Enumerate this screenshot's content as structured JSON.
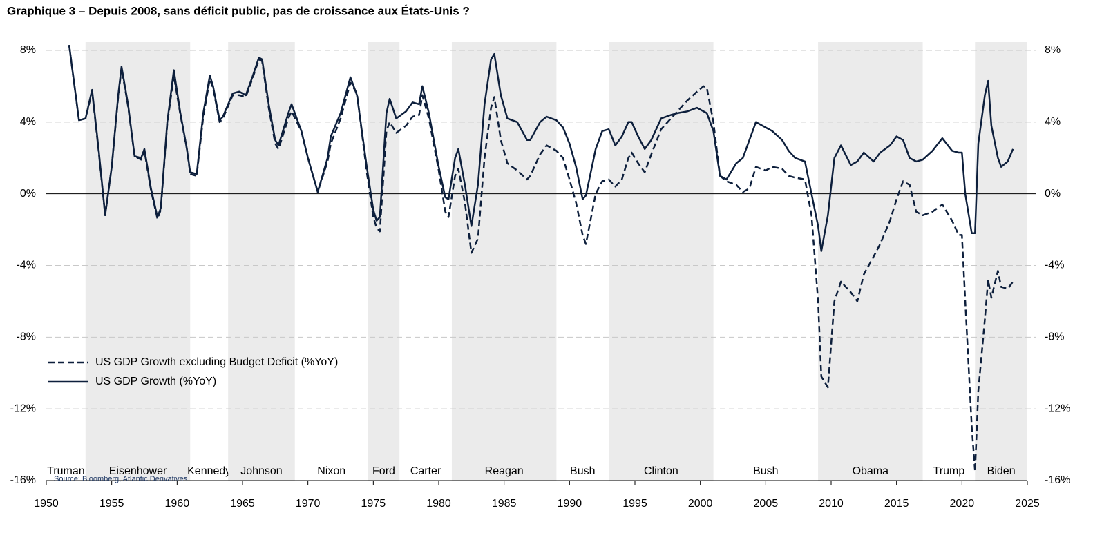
{
  "chart_data": {
    "type": "line",
    "title": "Graphique 3 – Depuis 2008, sans déficit public, pas de croissance aux États-Unis ?",
    "source": "Source: Bloomberg, Atlantic Derivatives",
    "x": [
      1951.75,
      1952.5,
      1953,
      1953.5,
      1954,
      1954.5,
      1955,
      1955.5,
      1955.75,
      1956.25,
      1956.75,
      1957.25,
      1957.5,
      1958,
      1958.5,
      1958.75,
      1959.25,
      1959.75,
      1960.25,
      1960.75,
      1961,
      1961.5,
      1962,
      1962.5,
      1962.75,
      1963.25,
      1963.5,
      1964.25,
      1964.75,
      1965.25,
      1965.75,
      1966.25,
      1966.5,
      1967,
      1967.5,
      1967.75,
      1968.5,
      1968.75,
      1969.5,
      1970,
      1970.75,
      1971.5,
      1971.75,
      1972.5,
      1973.25,
      1973.75,
      1974.5,
      1975,
      1975.25,
      1975.5,
      1976,
      1976.25,
      1976.75,
      1977.5,
      1978,
      1978.5,
      1978.75,
      1979.25,
      1980,
      1980.5,
      1980.75,
      1981.25,
      1981.5,
      1982,
      1982.5,
      1983,
      1983.5,
      1984,
      1984.25,
      1984.75,
      1985.25,
      1986,
      1986.75,
      1987,
      1987.75,
      1988.25,
      1989,
      1989.5,
      1990,
      1990.5,
      1991,
      1991.25,
      1992,
      1992.5,
      1993,
      1993.5,
      1994,
      1994.5,
      1994.75,
      1995.25,
      1995.75,
      1996.25,
      1997,
      1997.75,
      1998.25,
      1999,
      1999.75,
      2000.25,
      2000.5,
      2001,
      2001.5,
      2002,
      2002.75,
      2003.25,
      2003.75,
      2004.25,
      2005,
      2005.5,
      2006.25,
      2006.75,
      2007.25,
      2008,
      2008.5,
      2009,
      2009.25,
      2009.75,
      2010.25,
      2010.75,
      2011.5,
      2012,
      2012.5,
      2013.25,
      2013.75,
      2014.5,
      2015,
      2015.5,
      2016,
      2016.5,
      2017,
      2017.75,
      2018.5,
      2019.25,
      2019.75,
      2020,
      2020.25,
      2020.75,
      2021,
      2021.25,
      2021.75,
      2022,
      2022.25,
      2022.75,
      2023,
      2023.5,
      2023.9
    ],
    "series": [
      {
        "name": "US GDP Growth excluding Budget Deficit (%YoY)",
        "color": "#0d1f3c",
        "dash": true,
        "values": [
          8.3,
          4.1,
          4.2,
          5.7,
          2.4,
          -1.2,
          1.5,
          5.4,
          7.0,
          4.9,
          2.1,
          1.9,
          2.4,
          0.2,
          -1.4,
          -0.9,
          3.9,
          6.6,
          4.4,
          2.5,
          1.1,
          1.0,
          4.3,
          6.4,
          5.9,
          4.0,
          4.2,
          5.5,
          5.5,
          5.4,
          6.4,
          7.5,
          7.4,
          4.8,
          2.8,
          2.5,
          4.2,
          4.6,
          3.5,
          2.0,
          0.1,
          1.8,
          2.8,
          4.2,
          6.2,
          5.6,
          1.2,
          -1.3,
          -1.9,
          -2.1,
          3.5,
          4.0,
          3.4,
          3.8,
          4.3,
          4.4,
          5.5,
          4.2,
          1.3,
          -1.0,
          -1.3,
          1.0,
          1.4,
          -0.5,
          -3.3,
          -2.5,
          2.0,
          4.8,
          5.4,
          3.0,
          1.7,
          1.3,
          0.8,
          1.0,
          2.2,
          2.7,
          2.4,
          2.0,
          0.8,
          -0.5,
          -2.3,
          -2.8,
          0.0,
          0.7,
          0.8,
          0.4,
          0.8,
          2.0,
          2.3,
          1.7,
          1.2,
          2.2,
          3.6,
          4.2,
          4.6,
          5.2,
          5.7,
          6.0,
          5.9,
          4.0,
          1.0,
          0.7,
          0.5,
          0.1,
          0.3,
          1.5,
          1.3,
          1.5,
          1.4,
          1.0,
          0.9,
          0.8,
          -1.2,
          -6.0,
          -10.2,
          -10.8,
          -6.0,
          -4.9,
          -5.5,
          -6.0,
          -4.5,
          -3.5,
          -2.8,
          -1.5,
          -0.3,
          0.7,
          0.5,
          -1.0,
          -1.2,
          -1.0,
          -0.6,
          -1.5,
          -2.3,
          -2.3,
          -6.0,
          -13.0,
          -15.5,
          -11.0,
          -7.0,
          -4.8,
          -5.8,
          -4.3,
          -5.2,
          -5.3,
          -4.9
        ]
      },
      {
        "name": "US GDP Growth (%YoY)",
        "color": "#0d1f3c",
        "dash": false,
        "values": [
          8.3,
          4.1,
          4.2,
          5.8,
          2.5,
          -1.2,
          1.5,
          5.5,
          7.1,
          5.0,
          2.1,
          2.0,
          2.5,
          0.3,
          -1.3,
          -0.8,
          4.0,
          6.9,
          4.5,
          2.5,
          1.2,
          1.1,
          4.5,
          6.6,
          6.0,
          4.1,
          4.3,
          5.6,
          5.7,
          5.5,
          6.5,
          7.6,
          7.5,
          5.0,
          3.0,
          2.7,
          4.5,
          5.0,
          3.5,
          2.0,
          0.1,
          2.0,
          3.2,
          4.5,
          6.5,
          5.5,
          1.5,
          -0.9,
          -1.5,
          -1.3,
          4.5,
          5.3,
          4.2,
          4.6,
          5.1,
          5.0,
          6.0,
          4.5,
          1.5,
          -0.2,
          -0.3,
          2.0,
          2.5,
          0.5,
          -1.8,
          0.5,
          5.0,
          7.5,
          7.8,
          5.5,
          4.2,
          4.0,
          3.0,
          3.0,
          4.0,
          4.3,
          4.1,
          3.7,
          2.8,
          1.5,
          -0.3,
          -0.1,
          2.5,
          3.5,
          3.6,
          2.7,
          3.2,
          4.0,
          4.0,
          3.2,
          2.5,
          3.0,
          4.2,
          4.4,
          4.5,
          4.6,
          4.8,
          4.6,
          4.5,
          3.5,
          1.0,
          0.8,
          1.7,
          2.0,
          3.0,
          4.0,
          3.7,
          3.5,
          3.0,
          2.4,
          2.0,
          1.8,
          0.0,
          -1.8,
          -3.2,
          -1.2,
          2.0,
          2.7,
          1.6,
          1.8,
          2.3,
          1.8,
          2.3,
          2.7,
          3.2,
          3.0,
          2.0,
          1.8,
          1.9,
          2.4,
          3.1,
          2.4,
          2.3,
          2.3,
          0.0,
          -2.2,
          -2.2,
          2.8,
          5.5,
          6.3,
          3.8,
          2.0,
          1.5,
          1.8,
          2.5
        ]
      }
    ],
    "presidents": [
      {
        "name": "Truman",
        "start": 1950,
        "end": 1953,
        "shaded": false
      },
      {
        "name": "Eisenhower",
        "start": 1953,
        "end": 1961,
        "shaded": true
      },
      {
        "name": "Kennedy",
        "start": 1961,
        "end": 1963.9,
        "shaded": false
      },
      {
        "name": "Johnson",
        "start": 1963.9,
        "end": 1969,
        "shaded": true
      },
      {
        "name": "Nixon",
        "start": 1969,
        "end": 1974.6,
        "shaded": false
      },
      {
        "name": "Ford",
        "start": 1974.6,
        "end": 1977,
        "shaded": true
      },
      {
        "name": "Carter",
        "start": 1977,
        "end": 1981,
        "shaded": false
      },
      {
        "name": "Reagan",
        "start": 1981,
        "end": 1989,
        "shaded": true
      },
      {
        "name": "Bush",
        "start": 1989,
        "end": 1993,
        "shaded": false
      },
      {
        "name": "Clinton",
        "start": 1993,
        "end": 2001,
        "shaded": true
      },
      {
        "name": "Bush",
        "start": 2001,
        "end": 2009,
        "shaded": false
      },
      {
        "name": "Obama",
        "start": 2009,
        "end": 2017,
        "shaded": true
      },
      {
        "name": "Trump",
        "start": 2017,
        "end": 2021,
        "shaded": false
      },
      {
        "name": "Biden",
        "start": 2021,
        "end": 2025,
        "shaded": true
      }
    ],
    "xlim": [
      1950,
      2025
    ],
    "xticks": [
      1950,
      1955,
      1960,
      1965,
      1970,
      1975,
      1980,
      1985,
      1990,
      1995,
      2000,
      2005,
      2010,
      2015,
      2020,
      2025
    ],
    "ylim": [
      -16,
      8
    ],
    "yticks": [
      {
        "value": -16,
        "label": "-16%"
      },
      {
        "value": -12,
        "label": "-12%"
      },
      {
        "value": -8,
        "label": "-8%"
      },
      {
        "value": -4,
        "label": "-4%"
      },
      {
        "value": 0,
        "label": "0%"
      },
      {
        "value": 4,
        "label": "4%"
      },
      {
        "value": 8,
        "label": "8%"
      }
    ],
    "y2lim": [
      -16,
      8
    ],
    "y2ticks": [
      {
        "value": -16,
        "label": "-16%"
      },
      {
        "value": -12,
        "label": "-12%"
      },
      {
        "value": -8,
        "label": "-8%"
      },
      {
        "value": -4,
        "label": "-4%"
      },
      {
        "value": 0,
        "label": "0%"
      },
      {
        "value": 4,
        "label": "4%"
      },
      {
        "value": 8,
        "label": "8%"
      }
    ],
    "grid": true,
    "legend": "lower-left"
  }
}
